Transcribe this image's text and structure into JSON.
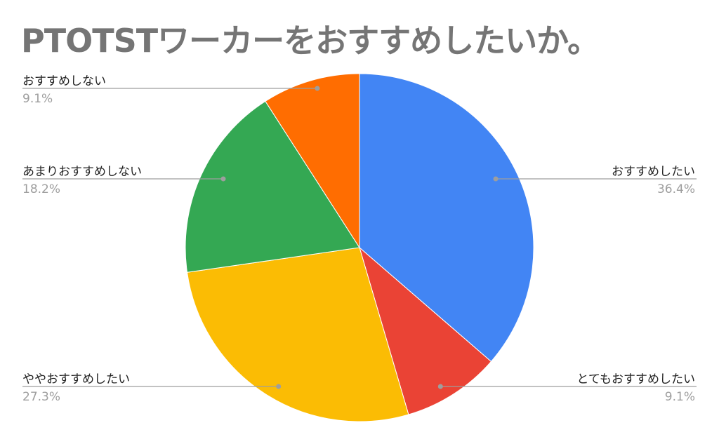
{
  "chart_data": {
    "type": "pie",
    "title": "PTOTSTワーカーをおすすめしたいか。",
    "slices": [
      {
        "label": "おすすめしたい",
        "percent_label": "36.4%",
        "value": 36.4,
        "color": "#4285f4"
      },
      {
        "label": "とてもおすすめしたい",
        "percent_label": "9.1%",
        "value": 9.1,
        "color": "#ea4335"
      },
      {
        "label": "ややおすすめしたい",
        "percent_label": "27.3%",
        "value": 27.3,
        "color": "#fbbc04"
      },
      {
        "label": "あまりおすすめしない",
        "percent_label": "18.2%",
        "value": 18.2,
        "color": "#34a853"
      },
      {
        "label": "おすすめしない",
        "percent_label": "9.1%",
        "value": 9.1,
        "color": "#ff6d01"
      }
    ],
    "start_direction": "top",
    "order": "clockwise",
    "legend": "none",
    "labels": "outside with leader lines"
  }
}
